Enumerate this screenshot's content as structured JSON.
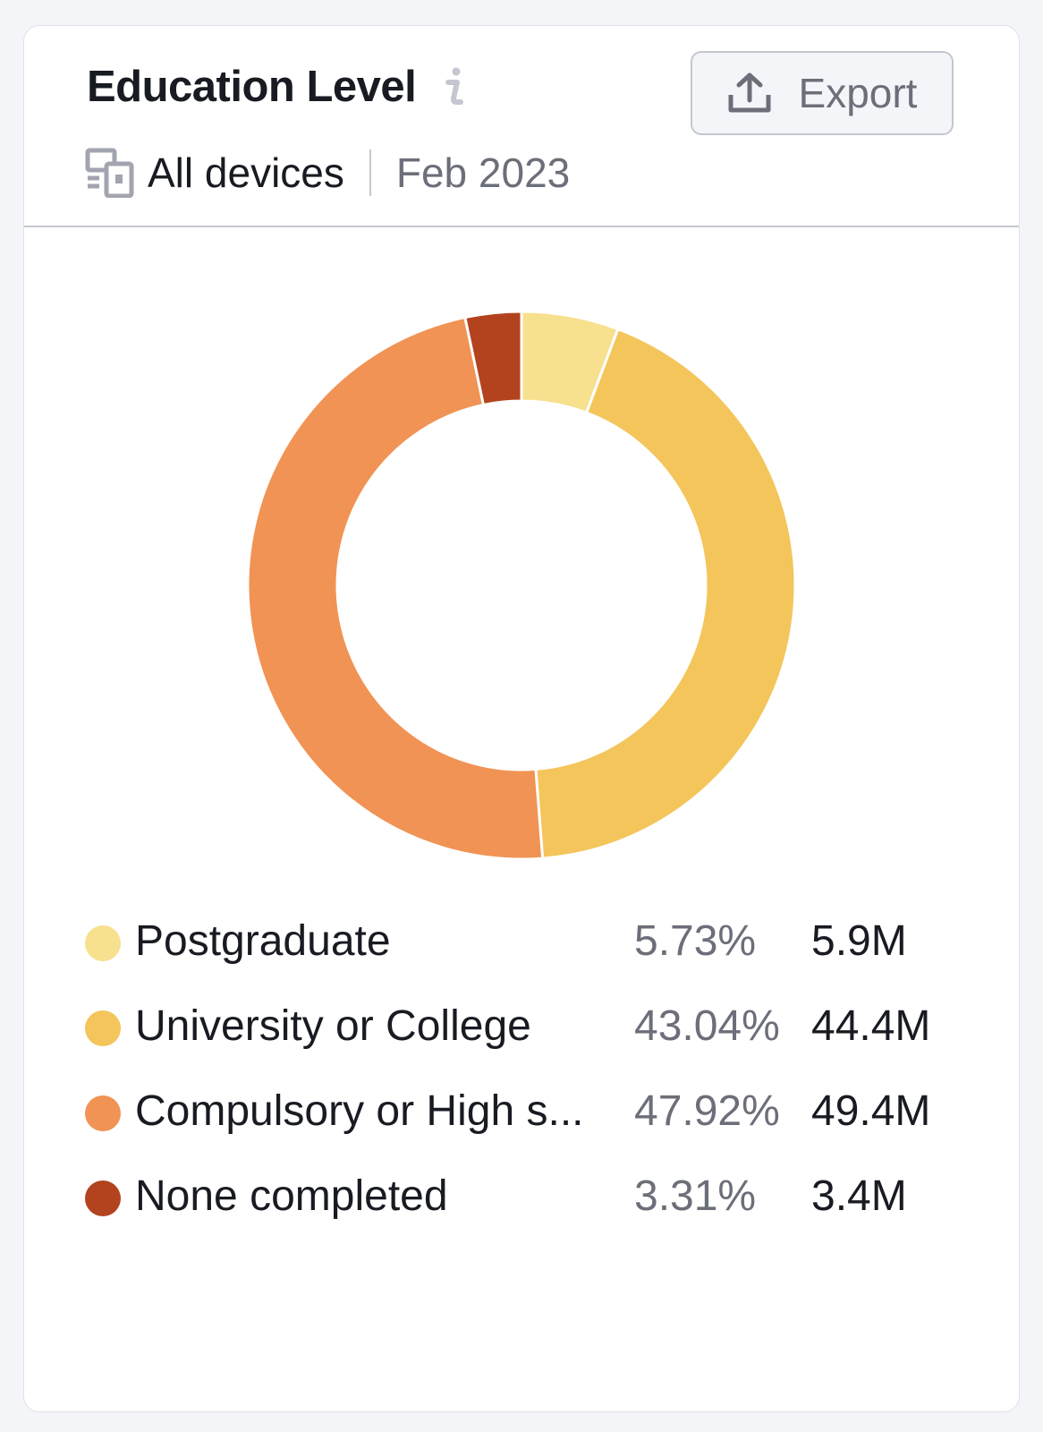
{
  "widget": {
    "title": "Education Level",
    "info_icon": "info-icon",
    "export_label": "Export",
    "export_icon": "upload-icon",
    "device_icon": "devices-icon",
    "device_filter": "All devices",
    "date": "Feb 2023"
  },
  "chart_data": {
    "type": "pie",
    "variant": "donut",
    "title": "",
    "categories": [
      "Postgraduate",
      "University or College",
      "Compulsory or High s...",
      "None completed"
    ],
    "values": [
      5.73,
      43.04,
      47.92,
      3.31
    ],
    "counts": [
      "5.9M",
      "44.4M",
      "49.4M",
      "3.4M"
    ],
    "colors": [
      "#f7e08e",
      "#f4c55b",
      "#f19354",
      "#b3431f"
    ],
    "legend_position": "bottom"
  },
  "legend": [
    {
      "label": "Postgraduate",
      "percent": "5.73%",
      "value": "5.9M"
    },
    {
      "label": "University or College",
      "percent": "43.04%",
      "value": "44.4M"
    },
    {
      "label": "Compulsory or High s...",
      "percent": "47.92%",
      "value": "49.4M"
    },
    {
      "label": "None completed",
      "percent": "3.31%",
      "value": "3.4M"
    }
  ]
}
